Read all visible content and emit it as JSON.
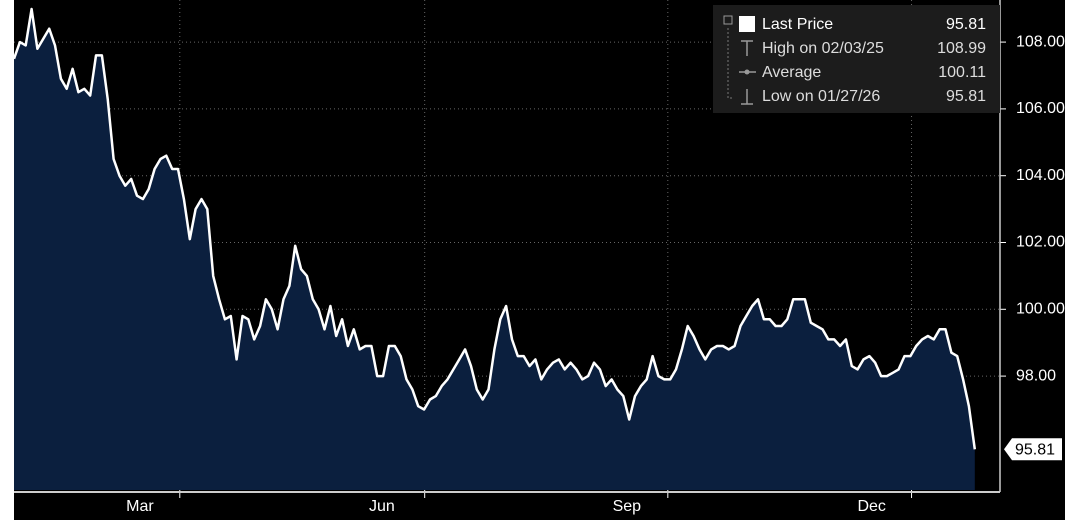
{
  "chart_data": {
    "type": "area",
    "values": [
      107.5,
      108.0,
      107.9,
      108.99,
      107.8,
      108.1,
      108.4,
      107.9,
      106.9,
      106.6,
      107.2,
      106.5,
      106.6,
      106.4,
      107.6,
      107.6,
      106.3,
      104.5,
      104.0,
      103.7,
      103.9,
      103.4,
      103.3,
      103.6,
      104.2,
      104.5,
      104.6,
      104.2,
      104.2,
      103.3,
      102.1,
      103.0,
      103.3,
      103.0,
      101.0,
      100.3,
      99.7,
      99.8,
      98.5,
      99.8,
      99.7,
      99.1,
      99.5,
      100.3,
      100.0,
      99.4,
      100.3,
      100.7,
      101.9,
      101.2,
      101.0,
      100.3,
      100.0,
      99.4,
      100.1,
      99.2,
      99.7,
      98.9,
      99.4,
      98.8,
      98.9,
      98.9,
      98.0,
      98.0,
      98.9,
      98.9,
      98.6,
      97.9,
      97.6,
      97.1,
      97.0,
      97.3,
      97.4,
      97.7,
      97.9,
      98.2,
      98.5,
      98.8,
      98.3,
      97.6,
      97.3,
      97.6,
      98.8,
      99.7,
      100.1,
      99.1,
      98.6,
      98.6,
      98.3,
      98.5,
      97.9,
      98.2,
      98.4,
      98.5,
      98.2,
      98.4,
      98.2,
      97.9,
      98.0,
      98.4,
      98.2,
      97.7,
      97.9,
      97.6,
      97.4,
      96.7,
      97.4,
      97.7,
      97.9,
      98.6,
      98.0,
      97.9,
      97.9,
      98.2,
      98.8,
      99.5,
      99.2,
      98.8,
      98.5,
      98.8,
      98.9,
      98.9,
      98.8,
      98.9,
      99.5,
      99.8,
      100.1,
      100.3,
      99.7,
      99.7,
      99.5,
      99.5,
      99.7,
      100.3,
      100.3,
      100.3,
      99.6,
      99.5,
      99.4,
      99.1,
      99.1,
      98.9,
      99.1,
      98.3,
      98.2,
      98.5,
      98.6,
      98.4,
      98.0,
      98.0,
      98.1,
      98.2,
      98.6,
      98.6,
      98.9,
      99.1,
      99.2,
      99.1,
      99.4,
      99.4,
      98.7,
      98.6,
      97.9,
      97.1,
      95.81
    ],
    "line_color": "#ffffff",
    "fill_color": "#0b1f3e",
    "xlim": [
      0,
      168.3
    ],
    "xticks": [
      {
        "value": 21.5,
        "label": "Mar"
      },
      {
        "value": 62.8,
        "label": "Jun"
      },
      {
        "value": 104.6,
        "label": "Sep"
      },
      {
        "value": 146.4,
        "label": "Dec"
      }
    ],
    "xgrid": [
      28.3,
      70.1,
      111.6,
      153.2
    ],
    "ylim": [
      94.59,
      109.26
    ],
    "yticks": [
      {
        "value": 98,
        "label": "98.00"
      },
      {
        "value": 100,
        "label": "100.00"
      },
      {
        "value": 102,
        "label": "102.00"
      },
      {
        "value": 104,
        "label": "104.00"
      },
      {
        "value": 106,
        "label": "106.00"
      },
      {
        "value": 108,
        "label": "108.00"
      }
    ],
    "grid": true,
    "legend": {
      "position": "upper right",
      "items": [
        {
          "label": "Last Price",
          "value": 95.81
        },
        {
          "label": "High on 02/03/25",
          "value": 108.99
        },
        {
          "label": "Average",
          "value": 100.11
        },
        {
          "label": "Low on 01/27/26",
          "value": 95.81
        }
      ]
    }
  }
}
